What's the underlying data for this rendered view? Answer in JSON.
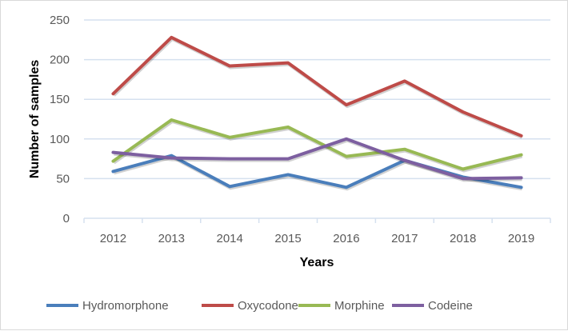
{
  "chart_data": {
    "type": "line",
    "title": "",
    "xlabel": "Years",
    "ylabel": "Number of samples",
    "categories": [
      "2012",
      "2013",
      "2014",
      "2015",
      "2016",
      "2017",
      "2018",
      "2019"
    ],
    "ylim": [
      0,
      250
    ],
    "yticks": [
      "0",
      "50",
      "100",
      "150",
      "200",
      "250"
    ],
    "grid": true,
    "legend": "bottom",
    "series": [
      {
        "name": "Hydromorphone",
        "color": "#4a7ebb",
        "values": [
          59,
          79,
          40,
          55,
          39,
          73,
          52,
          39
        ]
      },
      {
        "name": "Oxycodone",
        "color": "#be4b48",
        "values": [
          157,
          228,
          192,
          196,
          143,
          173,
          134,
          104
        ]
      },
      {
        "name": "Morphine",
        "color": "#98b954",
        "values": [
          72,
          124,
          102,
          115,
          78,
          87,
          62,
          80
        ]
      },
      {
        "name": "Codeine",
        "color": "#7d5fa0",
        "values": [
          83,
          76,
          75,
          75,
          100,
          73,
          50,
          51
        ]
      }
    ]
  }
}
